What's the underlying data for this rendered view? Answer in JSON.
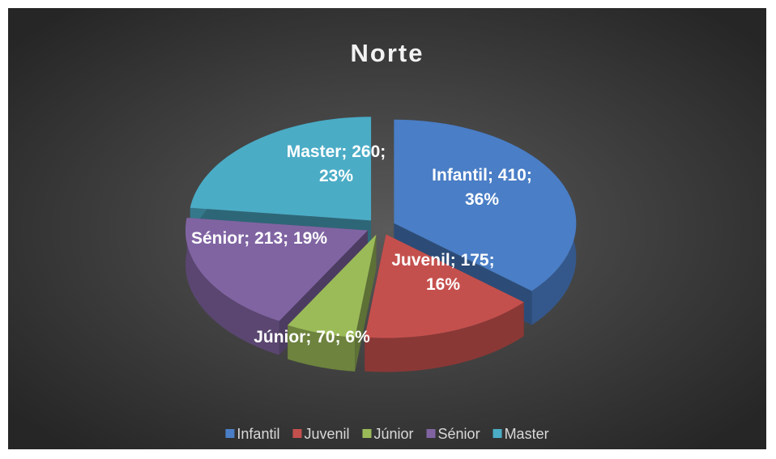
{
  "chart_data": {
    "type": "pie3d",
    "title": "Norte",
    "categories": [
      "Infantil",
      "Juvenil",
      "Júnior",
      "Sénior",
      "Master"
    ],
    "values": [
      410,
      175,
      70,
      213,
      260
    ],
    "value_labels": [
      "Infantil; 410; 36%",
      "Juvenil; 175; 16%",
      "Júnior; 70; 6%",
      "Sénior; 213; 19%",
      "Master; 260; 23%"
    ],
    "colors": [
      "#4a7ec6",
      "#c4504d",
      "#9bbb59",
      "#8064a2",
      "#4bacc6"
    ],
    "legend": "bottom"
  }
}
